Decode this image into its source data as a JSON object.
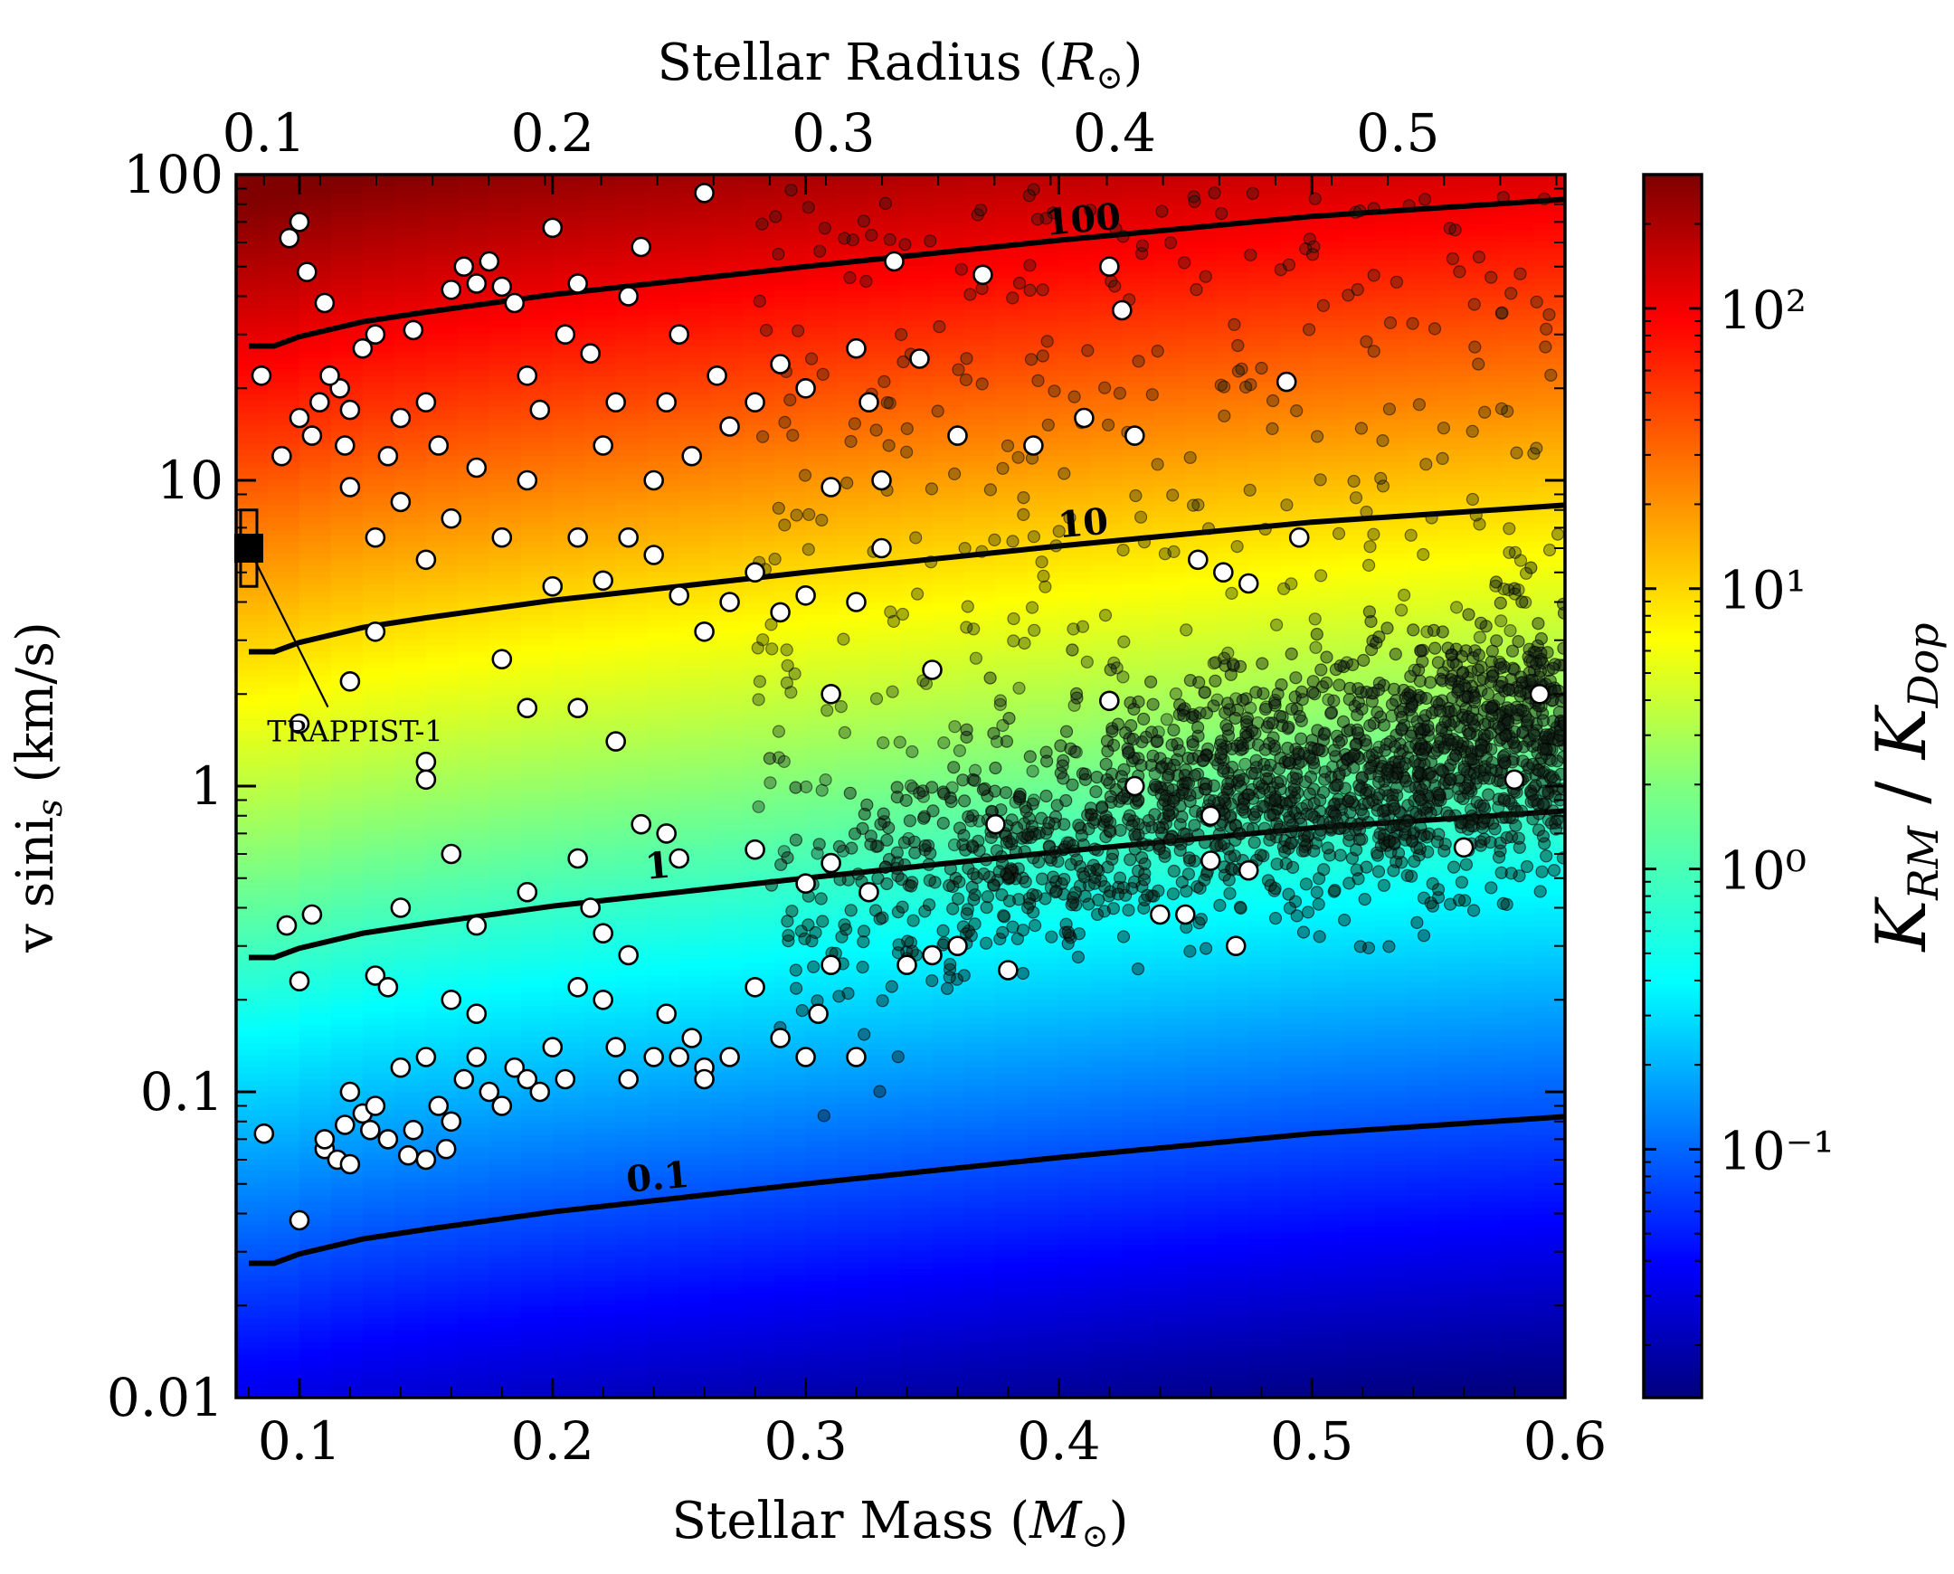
{
  "chart_data": {
    "type": "scatter",
    "title": "",
    "xlabel": "Stellar Mass  (M⊙)",
    "ylabel": "v siniₛ  (km/s)",
    "top_xlabel": "Stellar Radius  (R⊙)",
    "colorbar_label": "K_RM / K_Dop",
    "xlim": [
      0.075,
      0.6
    ],
    "ylim": [
      0.01,
      100
    ],
    "yscale": "log",
    "x_ticks": [
      "0.1",
      "0.2",
      "0.3",
      "0.4",
      "0.5",
      "0.6"
    ],
    "x_tick_values": [
      0.1,
      0.2,
      0.3,
      0.4,
      0.5,
      0.6
    ],
    "y_ticks": [
      "0.01",
      "0.1",
      "1",
      "10",
      "100"
    ],
    "y_tick_values": [
      0.01,
      0.1,
      1,
      10,
      100
    ],
    "top_ticks": [
      "0.1",
      "0.2",
      "0.3",
      "0.4",
      "0.5"
    ],
    "top_tick_mass_positions": [
      0.086,
      0.2,
      0.311,
      0.422,
      0.534
    ],
    "colorbar": {
      "scale": "log",
      "range": [
        0.013,
        300
      ],
      "ticks": [
        "10⁻¹",
        "10⁰",
        "10¹",
        "10²"
      ],
      "tick_values": [
        0.1,
        1,
        10,
        100
      ],
      "colormap": "jet"
    },
    "contours": [
      {
        "label": "100",
        "level": 100,
        "x": [
          0.08,
          0.09,
          0.1,
          0.125,
          0.15,
          0.2,
          0.3,
          0.4,
          0.5,
          0.6
        ],
        "y": [
          27.5,
          27.5,
          29.5,
          33,
          35.5,
          40.5,
          50,
          61,
          73,
          83
        ]
      },
      {
        "label": "10",
        "level": 10,
        "x": [
          0.08,
          0.09,
          0.1,
          0.125,
          0.15,
          0.2,
          0.3,
          0.4,
          0.5,
          0.6
        ],
        "y": [
          2.75,
          2.75,
          2.95,
          3.3,
          3.55,
          4.05,
          5.0,
          6.1,
          7.3,
          8.3
        ]
      },
      {
        "label": "1",
        "level": 1,
        "x": [
          0.08,
          0.09,
          0.1,
          0.125,
          0.15,
          0.2,
          0.3,
          0.4,
          0.5,
          0.6
        ],
        "y": [
          0.275,
          0.275,
          0.295,
          0.33,
          0.355,
          0.405,
          0.5,
          0.61,
          0.73,
          0.83
        ]
      },
      {
        "label": "0.1",
        "level": 0.1,
        "x": [
          0.08,
          0.09,
          0.1,
          0.125,
          0.15,
          0.2,
          0.3,
          0.4,
          0.5,
          0.6
        ],
        "y": [
          0.0275,
          0.0275,
          0.0295,
          0.033,
          0.0355,
          0.0405,
          0.05,
          0.061,
          0.073,
          0.083
        ]
      }
    ],
    "contour_label_positions": [
      {
        "label": "100",
        "x": 0.41,
        "y": 65
      },
      {
        "label": "10",
        "x": 0.41,
        "y": 6.6
      },
      {
        "label": "1",
        "x": 0.242,
        "y": 0.5
      },
      {
        "label": "0.1",
        "x": 0.242,
        "y": 0.048
      }
    ],
    "series": [
      {
        "name": "measured v sini (white)",
        "marker": "white circle",
        "points": [
          [
            0.085,
            22
          ],
          [
            0.093,
            12
          ],
          [
            0.096,
            62
          ],
          [
            0.1,
            70
          ],
          [
            0.103,
            48
          ],
          [
            0.11,
            38
          ],
          [
            0.116,
            20
          ],
          [
            0.12,
            17
          ],
          [
            0.108,
            18
          ],
          [
            0.112,
            22
          ],
          [
            0.105,
            14
          ],
          [
            0.1,
            16
          ],
          [
            0.118,
            13
          ],
          [
            0.125,
            27
          ],
          [
            0.13,
            30
          ],
          [
            0.135,
            12
          ],
          [
            0.14,
            16
          ],
          [
            0.145,
            31
          ],
          [
            0.15,
            18
          ],
          [
            0.155,
            13
          ],
          [
            0.16,
            42
          ],
          [
            0.165,
            50
          ],
          [
            0.17,
            44
          ],
          [
            0.175,
            52
          ],
          [
            0.18,
            43
          ],
          [
            0.185,
            38
          ],
          [
            0.19,
            22
          ],
          [
            0.195,
            17
          ],
          [
            0.2,
            67
          ],
          [
            0.205,
            30
          ],
          [
            0.21,
            44
          ],
          [
            0.215,
            26
          ],
          [
            0.22,
            13
          ],
          [
            0.225,
            18
          ],
          [
            0.23,
            40
          ],
          [
            0.235,
            58
          ],
          [
            0.24,
            10
          ],
          [
            0.245,
            18
          ],
          [
            0.25,
            30
          ],
          [
            0.255,
            12
          ],
          [
            0.26,
            87
          ],
          [
            0.265,
            22
          ],
          [
            0.27,
            15
          ],
          [
            0.28,
            18
          ],
          [
            0.29,
            24
          ],
          [
            0.3,
            20
          ],
          [
            0.31,
            9.5
          ],
          [
            0.32,
            27
          ],
          [
            0.325,
            18
          ],
          [
            0.33,
            10
          ],
          [
            0.335,
            52
          ],
          [
            0.345,
            25
          ],
          [
            0.36,
            14
          ],
          [
            0.37,
            47
          ],
          [
            0.39,
            13
          ],
          [
            0.41,
            16
          ],
          [
            0.42,
            50
          ],
          [
            0.425,
            36
          ],
          [
            0.43,
            14
          ],
          [
            0.455,
            5.5
          ],
          [
            0.465,
            5
          ],
          [
            0.475,
            4.6
          ],
          [
            0.49,
            21
          ],
          [
            0.495,
            6.5
          ],
          [
            0.12,
            9.5
          ],
          [
            0.13,
            6.5
          ],
          [
            0.14,
            8.5
          ],
          [
            0.15,
            5.5
          ],
          [
            0.16,
            7.5
          ],
          [
            0.17,
            11
          ],
          [
            0.18,
            6.5
          ],
          [
            0.19,
            10
          ],
          [
            0.2,
            4.5
          ],
          [
            0.21,
            6.5
          ],
          [
            0.22,
            4.7
          ],
          [
            0.23,
            6.5
          ],
          [
            0.24,
            5.7
          ],
          [
            0.25,
            4.2
          ],
          [
            0.26,
            3.2
          ],
          [
            0.27,
            4
          ],
          [
            0.28,
            5
          ],
          [
            0.29,
            3.7
          ],
          [
            0.3,
            4.2
          ],
          [
            0.31,
            2
          ],
          [
            0.32,
            4
          ],
          [
            0.33,
            6
          ],
          [
            0.35,
            2.4
          ],
          [
            0.42,
            1.9
          ],
          [
            0.1,
            1.6
          ],
          [
            0.12,
            2.2
          ],
          [
            0.13,
            3.2
          ],
          [
            0.15,
            1.2
          ],
          [
            0.15,
            1.05
          ],
          [
            0.18,
            2.6
          ],
          [
            0.19,
            1.8
          ],
          [
            0.21,
            1.8
          ],
          [
            0.225,
            1.4
          ],
          [
            0.235,
            0.75
          ],
          [
            0.245,
            0.7
          ],
          [
            0.25,
            0.58
          ],
          [
            0.28,
            0.62
          ],
          [
            0.3,
            0.48
          ],
          [
            0.31,
            0.56
          ],
          [
            0.095,
            0.35
          ],
          [
            0.105,
            0.38
          ],
          [
            0.14,
            0.4
          ],
          [
            0.16,
            0.6
          ],
          [
            0.17,
            0.35
          ],
          [
            0.19,
            0.45
          ],
          [
            0.21,
            0.58
          ],
          [
            0.215,
            0.4
          ],
          [
            0.22,
            0.33
          ],
          [
            0.23,
            0.28
          ],
          [
            0.245,
            0.18
          ],
          [
            0.255,
            0.15
          ],
          [
            0.26,
            0.12
          ],
          [
            0.27,
            0.13
          ],
          [
            0.28,
            0.22
          ],
          [
            0.29,
            0.15
          ],
          [
            0.3,
            0.13
          ],
          [
            0.305,
            0.18
          ],
          [
            0.31,
            0.26
          ],
          [
            0.32,
            0.13
          ],
          [
            0.325,
            0.45
          ],
          [
            0.34,
            0.26
          ],
          [
            0.35,
            0.28
          ],
          [
            0.36,
            0.3
          ],
          [
            0.375,
            0.75
          ],
          [
            0.38,
            0.25
          ],
          [
            0.43,
            1.0
          ],
          [
            0.44,
            0.38
          ],
          [
            0.45,
            0.38
          ],
          [
            0.46,
            0.8
          ],
          [
            0.46,
            0.57
          ],
          [
            0.47,
            0.3
          ],
          [
            0.475,
            0.53
          ],
          [
            0.56,
            0.63
          ],
          [
            0.58,
            1.05
          ],
          [
            0.59,
            2.0
          ],
          [
            0.1,
            0.23
          ],
          [
            0.12,
            0.1
          ],
          [
            0.125,
            0.085
          ],
          [
            0.13,
            0.09
          ],
          [
            0.135,
            0.07
          ],
          [
            0.14,
            0.12
          ],
          [
            0.145,
            0.075
          ],
          [
            0.15,
            0.06
          ],
          [
            0.155,
            0.09
          ],
          [
            0.16,
            0.08
          ],
          [
            0.165,
            0.11
          ],
          [
            0.17,
            0.13
          ],
          [
            0.175,
            0.1
          ],
          [
            0.18,
            0.09
          ],
          [
            0.185,
            0.12
          ],
          [
            0.19,
            0.11
          ],
          [
            0.195,
            0.1
          ],
          [
            0.2,
            0.14
          ],
          [
            0.205,
            0.11
          ],
          [
            0.21,
            0.22
          ],
          [
            0.22,
            0.2
          ],
          [
            0.225,
            0.14
          ],
          [
            0.23,
            0.11
          ],
          [
            0.24,
            0.13
          ],
          [
            0.25,
            0.13
          ],
          [
            0.26,
            0.11
          ],
          [
            0.11,
            0.065
          ],
          [
            0.115,
            0.06
          ],
          [
            0.12,
            0.058
          ],
          [
            0.13,
            0.24
          ],
          [
            0.135,
            0.22
          ],
          [
            0.15,
            0.13
          ],
          [
            0.16,
            0.2
          ],
          [
            0.17,
            0.18
          ],
          [
            0.1,
            0.038
          ],
          [
            0.086,
            0.073
          ],
          [
            0.11,
            0.07
          ],
          [
            0.118,
            0.078
          ],
          [
            0.128,
            0.075
          ],
          [
            0.143,
            0.062
          ],
          [
            0.158,
            0.065
          ]
        ]
      },
      {
        "name": "v sini upper limits (dark translucent)",
        "marker": "dark translucent circle",
        "description_of_distribution": "dense band from ~0.28 Msun to 0.6 Msun between ~0.3 and ~3 km/s, rising with mass, plus sparse scatter up to ~90 km/s",
        "band": {
          "x_range": [
            0.28,
            0.6
          ],
          "center_at_x": [
            [
              0.28,
              0.35
            ],
            [
              0.35,
              0.5
            ],
            [
              0.45,
              0.85
            ],
            [
              0.55,
              1.2
            ],
            [
              0.6,
              1.5
            ]
          ],
          "log_halfwidth": 0.28
        },
        "sparse_region": {
          "x_range": [
            0.28,
            0.6
          ],
          "y_range": [
            0.6,
            90
          ]
        }
      }
    ],
    "annotation": {
      "text": "TRAPPIST-1",
      "point": {
        "x": 0.08,
        "y": 6.0,
        "y_err": [
          4.5,
          8.0
        ]
      },
      "label_position": {
        "x": 0.122,
        "y": 1.4
      }
    }
  }
}
